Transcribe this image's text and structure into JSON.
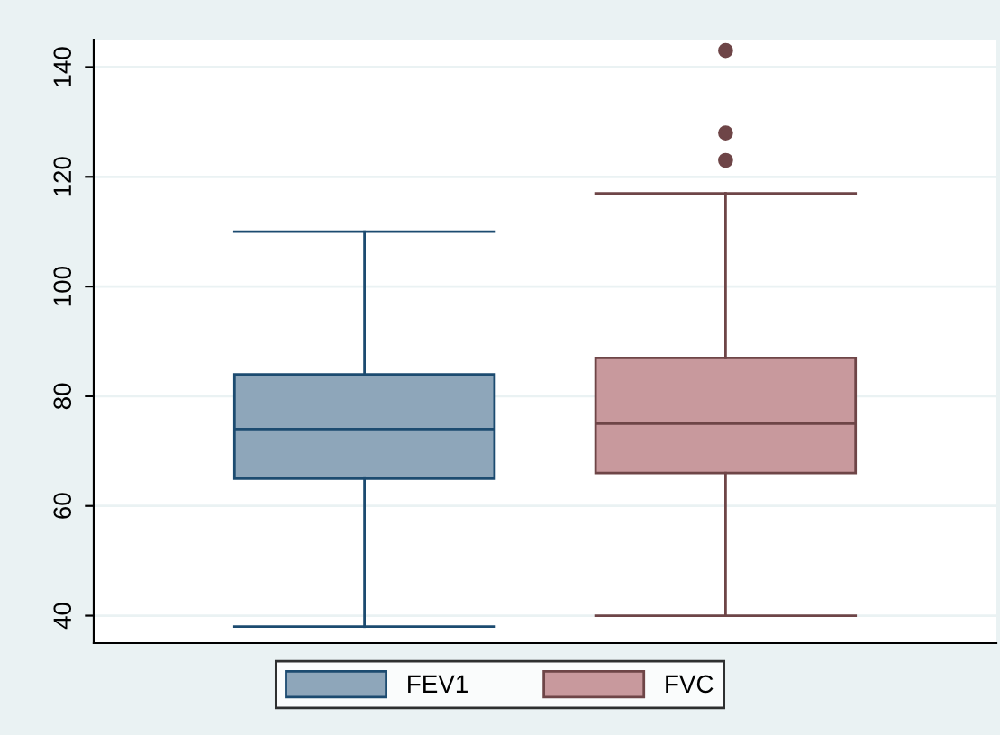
{
  "chart_data": {
    "type": "box",
    "categories": [
      null
    ],
    "series": [
      {
        "name": "FEV1",
        "color": "#8ea6ba",
        "boxes": [
          {
            "low": 38,
            "q1": 65,
            "median": 74,
            "q3": 84,
            "high": 110
          }
        ]
      },
      {
        "name": "FVC",
        "color": "#c8999d",
        "boxes": [
          {
            "low": 40,
            "q1": 66,
            "median": 75,
            "q3": 87,
            "high": 117,
            "outliers": [
              143,
              128,
              123
            ]
          }
        ]
      }
    ],
    "ylim": [
      35,
      145
    ],
    "yticks": [
      40,
      60,
      80,
      100,
      120,
      140
    ],
    "grid": "y",
    "legend": "bottom",
    "tick_labels": "y"
  }
}
